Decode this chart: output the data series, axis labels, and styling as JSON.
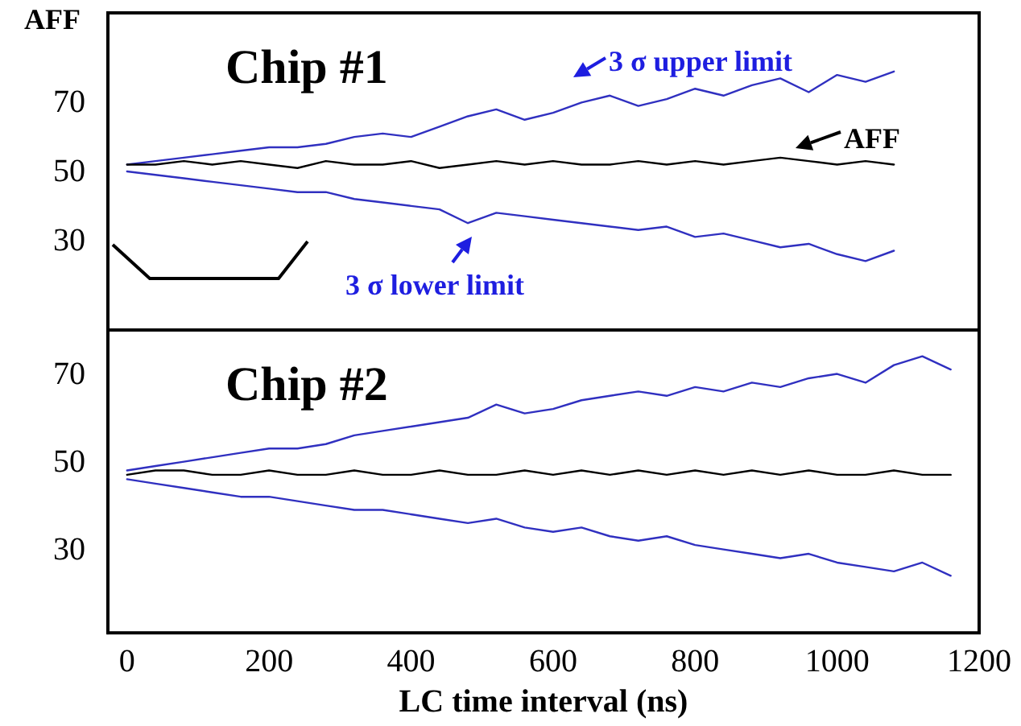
{
  "chart_data": [
    {
      "type": "line",
      "title": "Chip #1",
      "ylabel": "AFF",
      "x": [
        0,
        40,
        80,
        120,
        160,
        200,
        240,
        280,
        320,
        360,
        400,
        440,
        480,
        520,
        560,
        600,
        640,
        680,
        720,
        760,
        800,
        840,
        880,
        920,
        960,
        1000,
        1040,
        1080
      ],
      "series": [
        {
          "color": "#3030c0",
          "values": [
            52,
            53,
            54,
            55,
            56,
            57,
            57,
            58,
            60,
            61,
            60,
            63,
            66,
            68,
            65,
            67,
            70,
            72,
            69,
            71,
            74,
            72,
            75,
            77,
            73,
            78,
            76,
            79
          ]
        },
        {
          "color": "#000000",
          "values": [
            52,
            52,
            53,
            52,
            53,
            52,
            51,
            53,
            52,
            52,
            53,
            51,
            52,
            53,
            52,
            53,
            52,
            52,
            53,
            52,
            53,
            52,
            53,
            54,
            53,
            52,
            53,
            52
          ]
        },
        {
          "color": "#3030c0",
          "values": [
            50,
            49,
            48,
            47,
            46,
            45,
            44,
            44,
            42,
            41,
            40,
            39,
            35,
            38,
            37,
            36,
            35,
            34,
            33,
            34,
            31,
            32,
            30,
            28,
            29,
            26,
            24,
            27
          ]
        }
      ],
      "xlim": [
        -27,
        1200
      ],
      "xticks": [
        0,
        200,
        400,
        600,
        800,
        1000,
        1200
      ],
      "ylim": [
        4,
        96
      ],
      "yticks": [
        30,
        50,
        70
      ],
      "tick_labels": "y",
      "grid": false,
      "marker": "none",
      "line_style": "solid",
      "annotations": [
        "3 σ upper limit",
        "3 σ lower limit",
        "AFF"
      ]
    },
    {
      "type": "line",
      "title": "Chip #2",
      "xlabel": "LC time interval (ns)",
      "x": [
        0,
        40,
        80,
        120,
        160,
        200,
        240,
        280,
        320,
        360,
        400,
        440,
        480,
        520,
        560,
        600,
        640,
        680,
        720,
        760,
        800,
        840,
        880,
        920,
        960,
        1000,
        1040,
        1080,
        1120,
        1160
      ],
      "series": [
        {
          "color": "#3030c0",
          "values": [
            48,
            49,
            50,
            51,
            52,
            53,
            53,
            54,
            56,
            57,
            58,
            59,
            60,
            63,
            61,
            62,
            64,
            65,
            66,
            65,
            67,
            66,
            68,
            67,
            69,
            70,
            68,
            72,
            74,
            71
          ]
        },
        {
          "color": "#000000",
          "values": [
            47,
            48,
            48,
            47,
            47,
            48,
            47,
            47,
            48,
            47,
            47,
            48,
            47,
            47,
            48,
            47,
            48,
            47,
            48,
            47,
            48,
            47,
            48,
            47,
            48,
            47,
            47,
            48,
            47,
            47
          ]
        },
        {
          "color": "#3030c0",
          "values": [
            46,
            45,
            44,
            43,
            42,
            42,
            41,
            40,
            39,
            39,
            38,
            37,
            36,
            37,
            35,
            34,
            35,
            33,
            32,
            33,
            31,
            30,
            29,
            28,
            29,
            27,
            26,
            25,
            27,
            24
          ]
        }
      ],
      "xlim": [
        -27,
        1200
      ],
      "xticks": [
        0,
        200,
        400,
        600,
        800,
        1000,
        1200
      ],
      "ylim": [
        11,
        80
      ],
      "yticks": [
        30,
        50,
        70
      ],
      "grid": false,
      "marker": "none",
      "line_style": "solid"
    }
  ]
}
